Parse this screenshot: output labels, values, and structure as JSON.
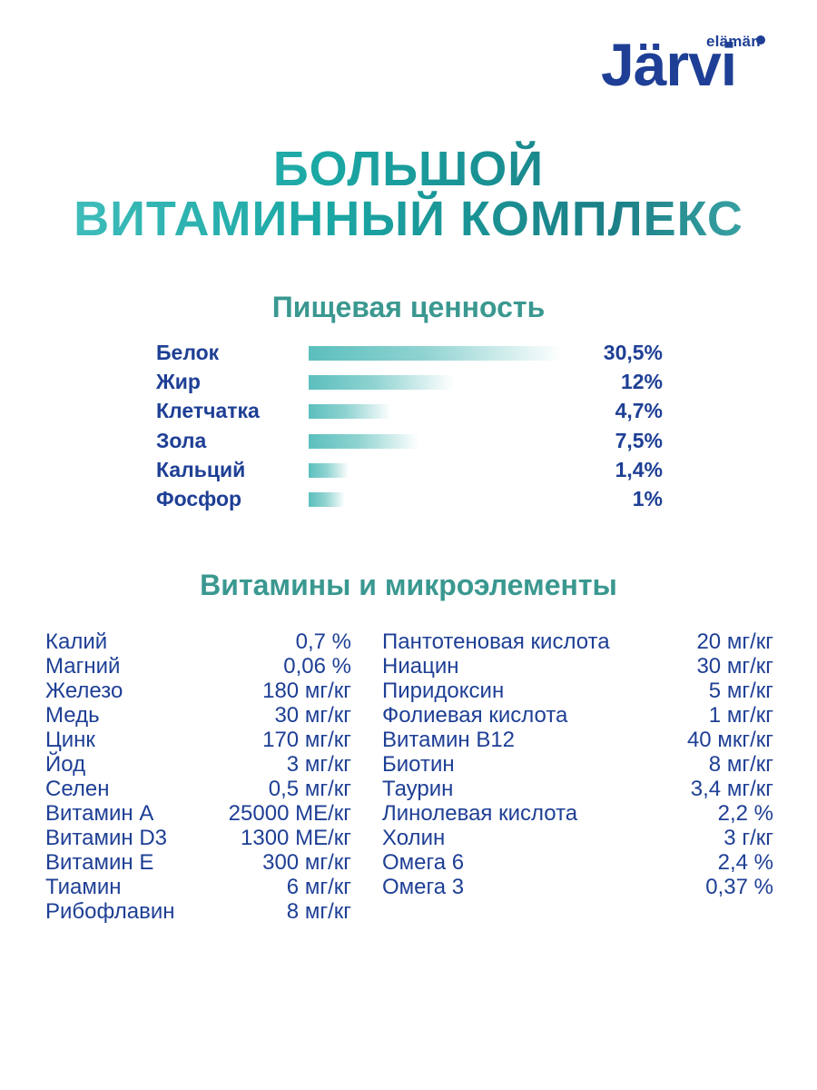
{
  "brand": {
    "small": "elämän",
    "big": "Järvi"
  },
  "title": {
    "line1": "БОЛЬШОЙ",
    "line2": "ВИТАМИННЫЙ КОМПЛЕКС"
  },
  "nutrition": {
    "heading": "Пищевая ценность",
    "items": [
      {
        "label": "Белок",
        "value": "30,5%",
        "percent": 30.5
      },
      {
        "label": "Жир",
        "value": "12%",
        "percent": 12
      },
      {
        "label": "Клетчатка",
        "value": "4,7%",
        "percent": 4.7
      },
      {
        "label": "Зола",
        "value": "7,5%",
        "percent": 7.5
      },
      {
        "label": "Кальций",
        "value": "1,4%",
        "percent": 1.4
      },
      {
        "label": "Фосфор",
        "value": "1%",
        "percent": 1
      }
    ]
  },
  "vitamins": {
    "heading": "Витамины и микроэлементы",
    "left": [
      {
        "name": "Калий",
        "value": "0,7 %"
      },
      {
        "name": "Магний",
        "value": "0,06 %"
      },
      {
        "name": "Железо",
        "value": "180 мг/кг"
      },
      {
        "name": "Медь",
        "value": "30 мг/кг"
      },
      {
        "name": "Цинк",
        "value": "170 мг/кг"
      },
      {
        "name": "Йод",
        "value": "3 мг/кг"
      },
      {
        "name": "Селен",
        "value": "0,5 мг/кг"
      },
      {
        "name": "Витамин А",
        "value": "25000 МЕ/кг"
      },
      {
        "name": "Витамин D3",
        "value": "1300 МЕ/кг"
      },
      {
        "name": "Витамин Е",
        "value": "300 мг/кг"
      },
      {
        "name": "Тиамин",
        "value": "6 мг/кг"
      },
      {
        "name": "Рибофлавин",
        "value": "8 мг/кг"
      }
    ],
    "right": [
      {
        "name": "Пантотеновая кислота",
        "value": "20 мг/кг"
      },
      {
        "name": "Ниацин",
        "value": "30 мг/кг"
      },
      {
        "name": "Пиридоксин",
        "value": "5 мг/кг"
      },
      {
        "name": "Фолиевая кислота",
        "value": "1 мг/кг"
      },
      {
        "name": "Витамин В12",
        "value": "40 мкг/кг"
      },
      {
        "name": "Биотин",
        "value": "8 мг/кг"
      },
      {
        "name": "Таурин",
        "value": "3,4 мг/кг"
      },
      {
        "name": "Линолевая кислота",
        "value": "2,2 %"
      },
      {
        "name": "Холин",
        "value": "3 г/кг"
      },
      {
        "name": "Омега 6",
        "value": "2,4 %"
      },
      {
        "name": "Омега 3",
        "value": "0,37 %"
      }
    ]
  },
  "colors": {
    "brand_blue": "#1e3f95",
    "teal": "#3a9890",
    "bar_teal": "#5bbfbd"
  }
}
